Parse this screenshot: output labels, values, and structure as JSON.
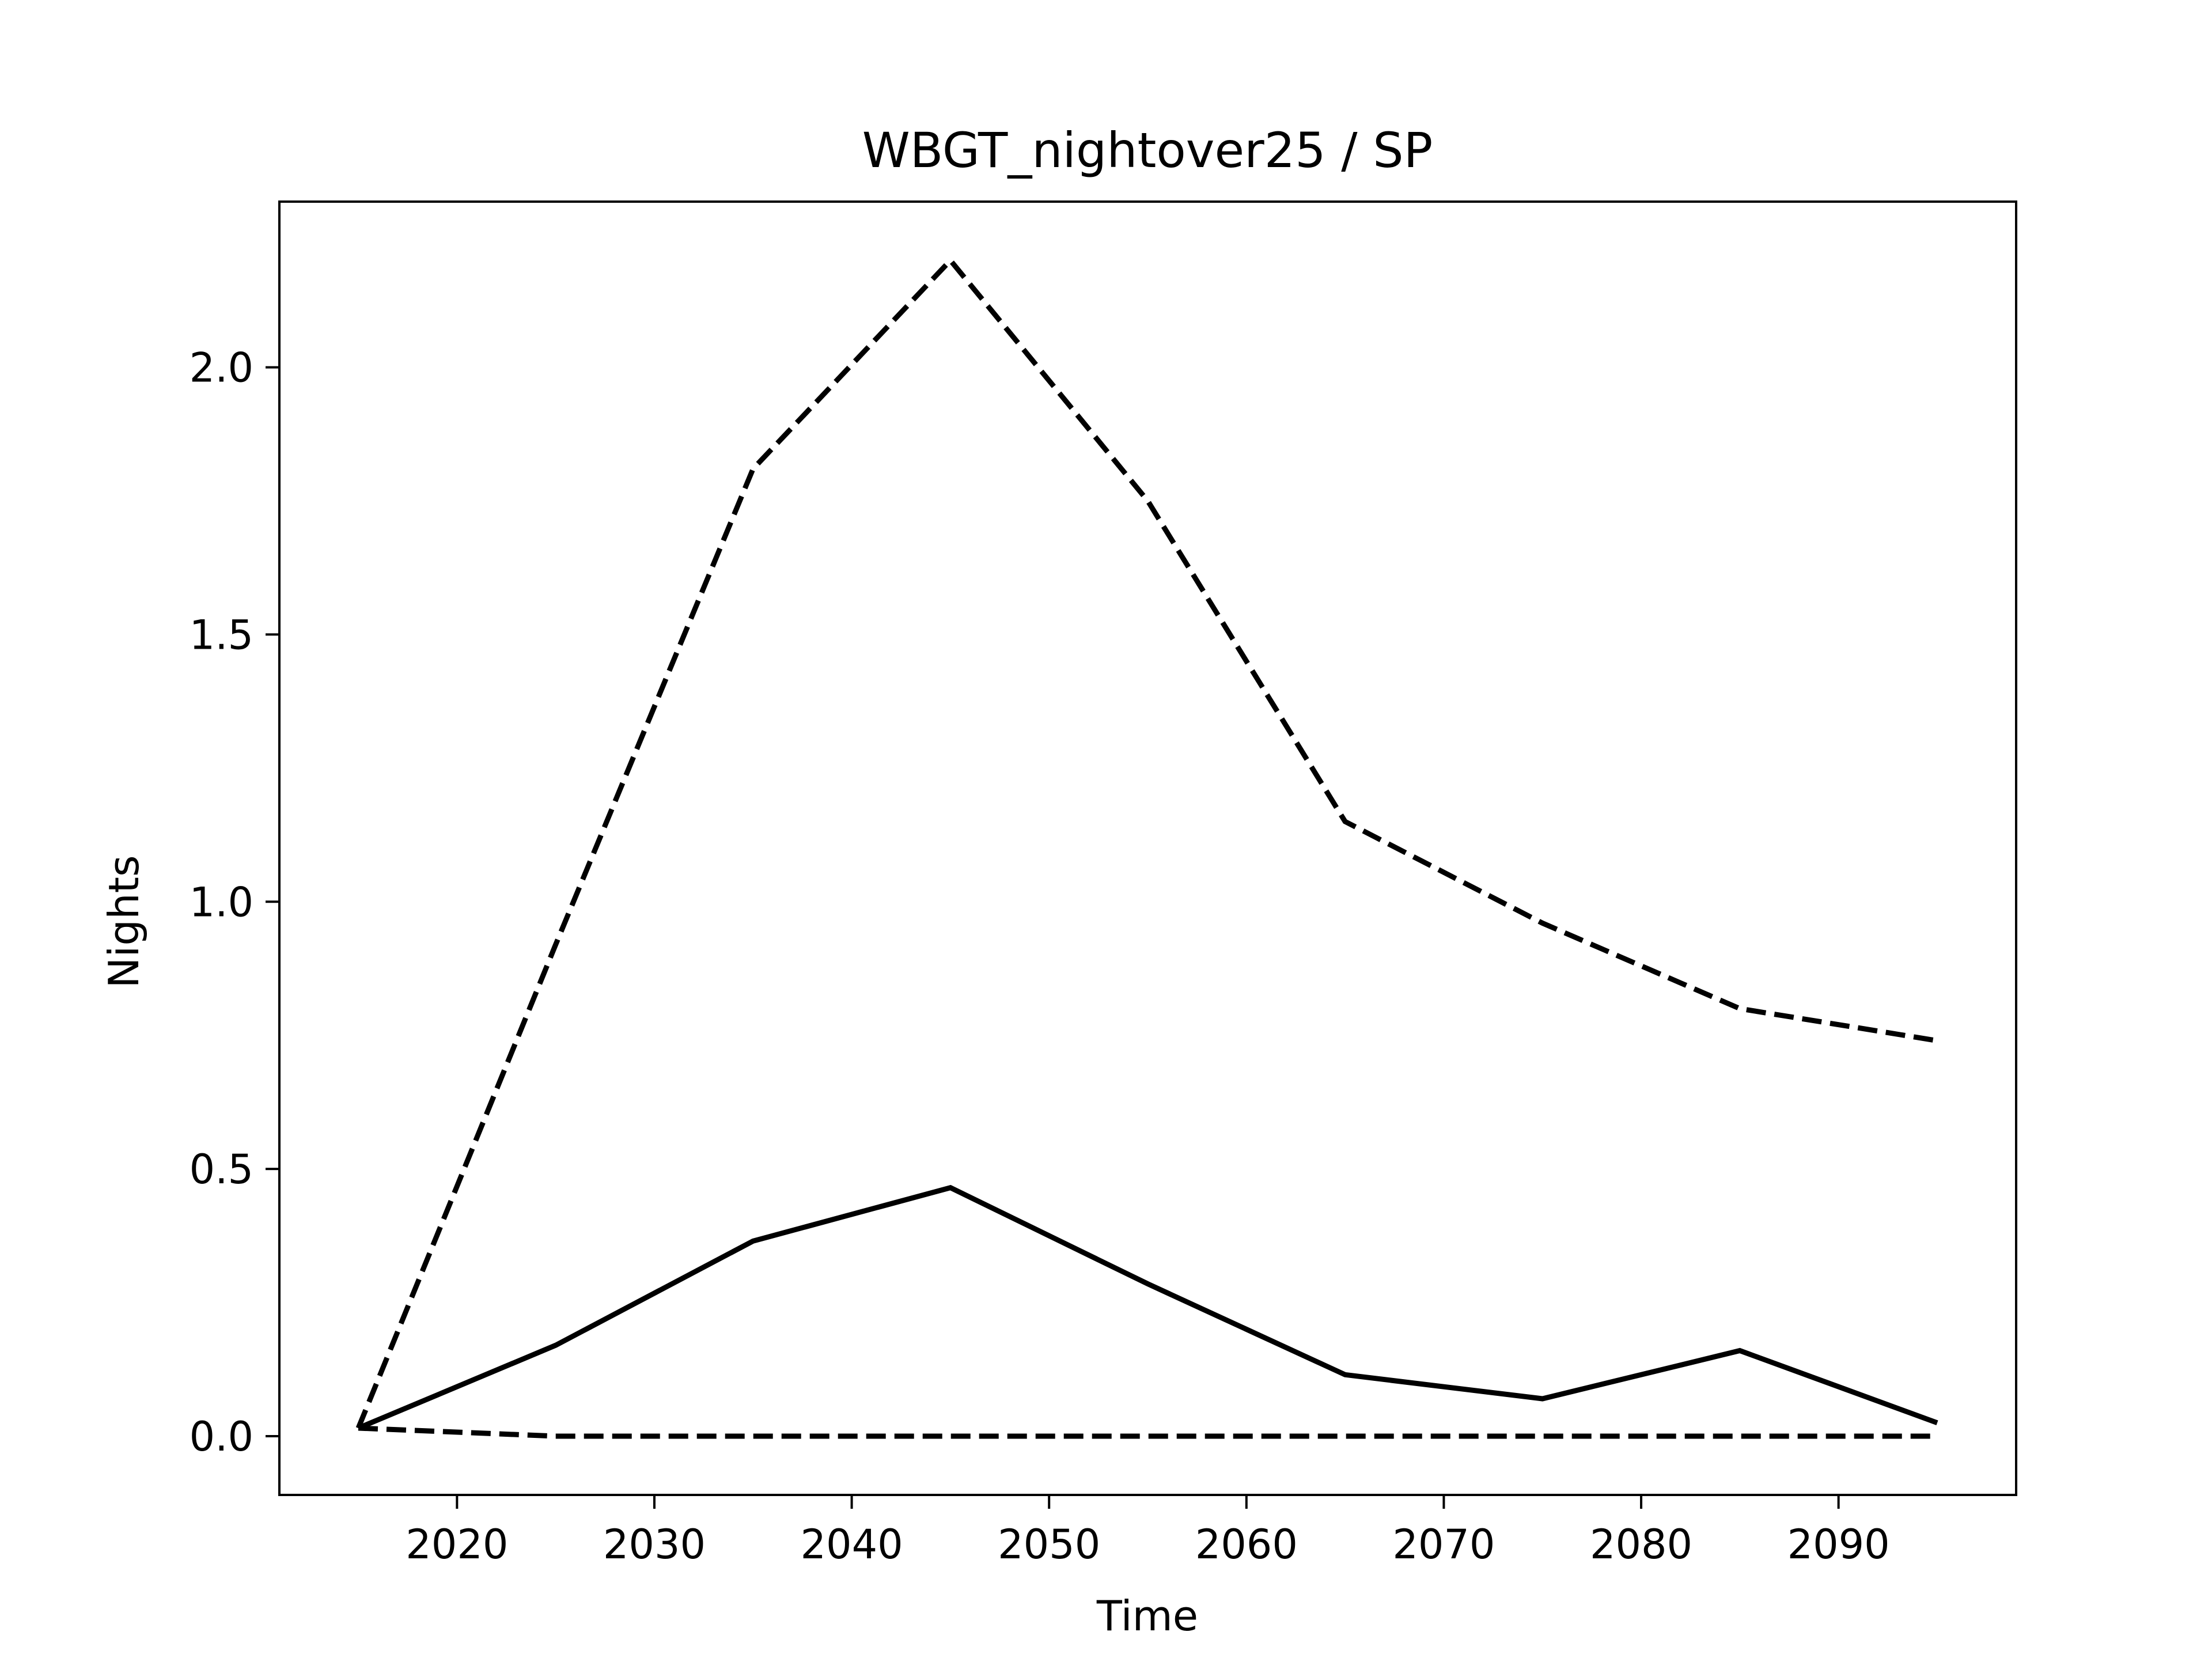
{
  "chart_data": {
    "type": "line",
    "title": "WBGT_nightover25 / SP",
    "xlabel": "Time",
    "ylabel": "Nights",
    "x": [
      2015,
      2025,
      2035,
      2045,
      2055,
      2065,
      2075,
      2085,
      2095
    ],
    "series": [
      {
        "style": "solid",
        "values": [
          0.015,
          0.17,
          0.365,
          0.465,
          0.285,
          0.115,
          0.07,
          0.16,
          0.025
        ]
      },
      {
        "style": "dashed",
        "values": [
          0.015,
          0.92,
          1.81,
          2.2,
          1.75,
          1.15,
          0.96,
          0.8,
          0.74
        ]
      },
      {
        "style": "dashed",
        "values": [
          0.015,
          0.0,
          0.0,
          0.0,
          0.0,
          0.0,
          0.0,
          0.0,
          0.0
        ]
      }
    ],
    "xlim": [
      2011,
      2099
    ],
    "ylim": [
      -0.11,
      2.31
    ],
    "xticks": [
      2020,
      2030,
      2040,
      2050,
      2060,
      2070,
      2080,
      2090
    ],
    "xtick_labels": [
      "2020",
      "2030",
      "2040",
      "2050",
      "2060",
      "2070",
      "2080",
      "2090"
    ],
    "yticks": [
      0.0,
      0.5,
      1.0,
      1.5,
      2.0
    ],
    "ytick_labels": [
      "0.0",
      "0.5",
      "1.0",
      "1.5",
      "2.0"
    ],
    "grid": false,
    "legend": "none",
    "line_color": "#000000"
  }
}
